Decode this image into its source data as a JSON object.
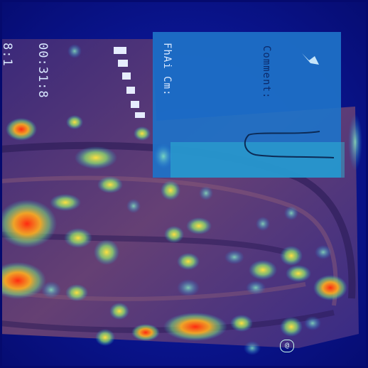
{
  "overlay_text": {
    "line_1": "00:31:8",
    "line_2": "8:1",
    "line_3": "FhAi Cm:",
    "comment_label": "Comment:",
    "marker": "@"
  },
  "colors": {
    "background": "#0a158f",
    "tissue": "#5b3a6e",
    "comment_box": "#1e72c8",
    "heat_hot": "#ff3a1a",
    "heat_warm": "#ffd23a",
    "heat_mild": "#4fd7a0"
  }
}
